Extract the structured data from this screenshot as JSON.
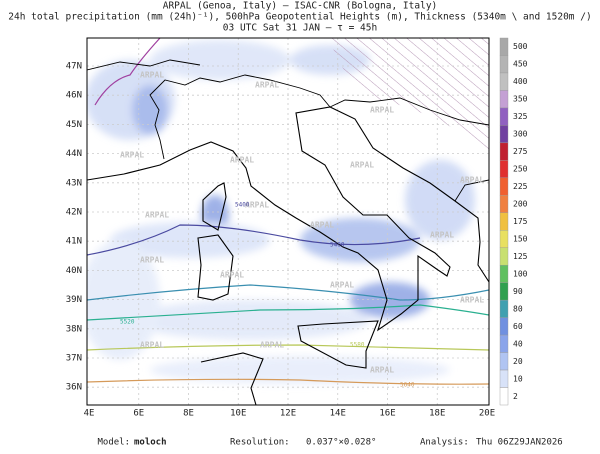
{
  "header": {
    "lines": [
      "ARPAL (Genoa, Italy)  –  ISAC-CNR (Bologna, Italy)",
      "24h total precipitation (mm (24h)⁻¹), 500hPa Geopotential Heights (m), Thickness (5340m \\ and 1520m /)",
      "03 UTC Sat 31 JAN  –  τ = 45h"
    ]
  },
  "map": {
    "lat_labels": [
      "47N",
      "46N",
      "45N",
      "44N",
      "43N",
      "42N",
      "41N",
      "40N",
      "39N",
      "38N",
      "37N",
      "36N"
    ],
    "lon_labels": [
      "4E",
      "6E",
      "8E",
      "10E",
      "12E",
      "14E",
      "16E",
      "18E",
      "20E"
    ],
    "watermark": "ARPAL",
    "contour_labels": [
      "5400",
      "5460",
      "5520",
      "5580",
      "5640"
    ]
  },
  "colorbar": {
    "labels": [
      "500",
      "450",
      "400",
      "350",
      "325",
      "300",
      "275",
      "250",
      "225",
      "200",
      "175",
      "150",
      "125",
      "100",
      "90",
      "80",
      "60",
      "40",
      "20",
      "10",
      "2"
    ]
  },
  "footer": {
    "model_label": "Model:",
    "model": "moloch",
    "resolution_label": "Resolution:",
    "resolution": "0.037°×0.028°",
    "analysis_label": "Analysis:",
    "analysis": "Thu 06Z29JAN2026"
  }
}
